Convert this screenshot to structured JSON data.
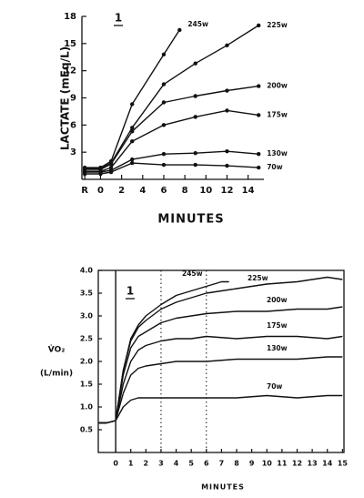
{
  "chart_data": [
    {
      "type": "line",
      "panel_label": "1",
      "ylabel": [
        "LACTATE (mEq/L)"
      ],
      "xlabel": "MINUTES",
      "xlim": [
        -2.2,
        15.5
      ],
      "ylim": [
        0,
        18
      ],
      "xticks": [
        {
          "value": -1.5,
          "label": "R"
        },
        0,
        2,
        4,
        6,
        8,
        10,
        12,
        14
      ],
      "yticks": [
        3,
        6,
        9,
        12,
        15,
        18
      ],
      "markers": true,
      "frame": false,
      "series": [
        {
          "name": "245w",
          "color": "#111111",
          "x": [
            -1.5,
            0,
            1,
            3,
            6,
            7.5
          ],
          "values": [
            1.3,
            1.3,
            2.0,
            8.3,
            13.8,
            16.5
          ]
        },
        {
          "name": "225w",
          "color": "#111111",
          "x": [
            -1.5,
            0,
            1,
            3,
            6,
            9,
            12,
            15
          ],
          "values": [
            1.2,
            1.2,
            1.8,
            5.7,
            10.5,
            12.8,
            14.8,
            17.0
          ]
        },
        {
          "name": "200w",
          "color": "#111111",
          "x": [
            -1.5,
            0,
            1,
            3,
            6,
            9,
            12,
            15
          ],
          "values": [
            1.1,
            1.1,
            1.7,
            5.3,
            8.5,
            9.2,
            9.8,
            10.3
          ]
        },
        {
          "name": "175w",
          "color": "#111111",
          "x": [
            -1.5,
            0,
            1,
            3,
            6,
            9,
            12,
            15
          ],
          "values": [
            0.9,
            0.9,
            1.3,
            4.2,
            6.0,
            6.9,
            7.6,
            7.1
          ]
        },
        {
          "name": "130w",
          "color": "#111111",
          "x": [
            -1.5,
            0,
            1,
            3,
            6,
            9,
            12,
            15
          ],
          "values": [
            0.8,
            0.8,
            1.0,
            2.2,
            2.8,
            2.9,
            3.1,
            2.8
          ]
        },
        {
          "name": "70w",
          "color": "#111111",
          "x": [
            -1.5,
            0,
            1,
            3,
            6,
            9,
            12,
            15
          ],
          "values": [
            0.6,
            0.6,
            0.8,
            1.8,
            1.6,
            1.6,
            1.5,
            1.3
          ]
        }
      ]
    },
    {
      "type": "line",
      "panel_label": "1",
      "ylabel": [
        "V̇O₂",
        "(L/min)"
      ],
      "xlabel": "MINUTES",
      "xlim": [
        -1.15,
        15.1
      ],
      "ylim": [
        0,
        4
      ],
      "xticks": [
        0,
        1,
        2,
        3,
        4,
        5,
        6,
        7,
        8,
        9,
        10,
        11,
        12,
        13,
        14,
        15
      ],
      "yticks": [
        0.5,
        {
          "value": 1,
          "label": "1.0"
        },
        1.5,
        {
          "value": 2,
          "label": "2.0"
        },
        2.5,
        {
          "value": 3,
          "label": "3.0"
        },
        3.5,
        {
          "value": 4,
          "label": "4.0"
        }
      ],
      "markers": false,
      "frame": true,
      "reference_lines": [
        {
          "x": 0,
          "style": "solid"
        },
        {
          "x": 3,
          "style": "dotted"
        },
        {
          "x": 6,
          "style": "dotted"
        }
      ],
      "series": [
        {
          "name": "245w",
          "color": "#111111",
          "x": [
            -1.1,
            -0.6,
            0,
            0.5,
            1,
            1.5,
            2,
            3,
            4,
            5,
            6,
            7,
            7.5
          ],
          "values": [
            0.65,
            0.65,
            0.7,
            1.8,
            2.5,
            2.8,
            3.0,
            3.25,
            3.45,
            3.55,
            3.65,
            3.75,
            3.75
          ]
        },
        {
          "name": "225w",
          "color": "#111111",
          "x": [
            -1.1,
            -0.6,
            0,
            0.5,
            1,
            1.5,
            2,
            3,
            4,
            5,
            6,
            8,
            10,
            12,
            14,
            15
          ],
          "values": [
            0.65,
            0.65,
            0.7,
            1.8,
            2.45,
            2.75,
            2.9,
            3.15,
            3.3,
            3.4,
            3.5,
            3.6,
            3.7,
            3.75,
            3.85,
            3.8
          ]
        },
        {
          "name": "200w",
          "color": "#111111",
          "x": [
            -1.1,
            -0.6,
            0,
            0.5,
            1,
            1.5,
            2,
            3,
            4,
            5,
            6,
            8,
            10,
            12,
            14,
            15
          ],
          "values": [
            0.65,
            0.65,
            0.7,
            1.7,
            2.3,
            2.55,
            2.65,
            2.85,
            2.95,
            3.0,
            3.05,
            3.1,
            3.1,
            3.15,
            3.15,
            3.2
          ]
        },
        {
          "name": "175w",
          "color": "#111111",
          "x": [
            -1.1,
            -0.6,
            0,
            0.5,
            1,
            1.5,
            2,
            3,
            4,
            5,
            6,
            8,
            10,
            12,
            14,
            15
          ],
          "values": [
            0.65,
            0.65,
            0.7,
            1.5,
            2.0,
            2.25,
            2.35,
            2.45,
            2.5,
            2.5,
            2.55,
            2.5,
            2.55,
            2.55,
            2.5,
            2.55
          ]
        },
        {
          "name": "130w",
          "color": "#111111",
          "x": [
            -1.1,
            -0.6,
            0,
            0.5,
            1,
            1.5,
            2,
            3,
            4,
            5,
            6,
            8,
            10,
            12,
            14,
            15
          ],
          "values": [
            0.65,
            0.65,
            0.7,
            1.3,
            1.7,
            1.85,
            1.9,
            1.95,
            2.0,
            2.0,
            2.0,
            2.05,
            2.05,
            2.05,
            2.1,
            2.1
          ]
        },
        {
          "name": "70w",
          "color": "#111111",
          "x": [
            -1.1,
            -0.6,
            0,
            0.5,
            1,
            1.5,
            2,
            3,
            4,
            5,
            6,
            8,
            10,
            12,
            14,
            15
          ],
          "values": [
            0.65,
            0.65,
            0.7,
            1.0,
            1.15,
            1.2,
            1.2,
            1.2,
            1.2,
            1.2,
            1.2,
            1.2,
            1.25,
            1.2,
            1.25,
            1.25
          ]
        }
      ]
    }
  ]
}
